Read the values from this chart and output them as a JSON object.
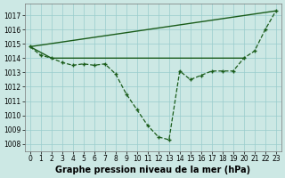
{
  "xlabel": "Graphe pression niveau de la mer (hPa)",
  "background_color": "#cce8e4",
  "grid_color": "#99cccc",
  "line_color": "#1a5c1a",
  "x_values": [
    0,
    1,
    2,
    3,
    4,
    5,
    6,
    7,
    8,
    9,
    10,
    11,
    12,
    13,
    14,
    15,
    16,
    17,
    18,
    19,
    20,
    21,
    22,
    23
  ],
  "main_line": [
    1014.8,
    1014.2,
    1014.0,
    1013.7,
    1013.5,
    1013.6,
    1013.5,
    1013.6,
    1012.9,
    1011.5,
    1010.4,
    1009.3,
    1008.5,
    1008.3,
    1013.1,
    1012.5,
    1012.8,
    1013.1,
    1013.1,
    1013.1,
    1014.0,
    1014.5,
    1016.0,
    1017.3
  ],
  "upper_line_x": [
    0,
    23
  ],
  "upper_line_y": [
    1014.8,
    1017.3
  ],
  "lower_line_x": [
    0,
    2,
    19,
    20
  ],
  "lower_line_y": [
    1014.8,
    1014.0,
    1014.0,
    1014.0
  ],
  "ylim": [
    1007.5,
    1017.8
  ],
  "xlim": [
    -0.5,
    23.5
  ],
  "yticks": [
    1008,
    1009,
    1010,
    1011,
    1012,
    1013,
    1014,
    1015,
    1016,
    1017
  ],
  "xticks": [
    0,
    1,
    2,
    3,
    4,
    5,
    6,
    7,
    8,
    9,
    10,
    11,
    12,
    13,
    14,
    15,
    16,
    17,
    18,
    19,
    20,
    21,
    22,
    23
  ],
  "tick_fontsize": 5.5,
  "label_fontsize": 7.0
}
